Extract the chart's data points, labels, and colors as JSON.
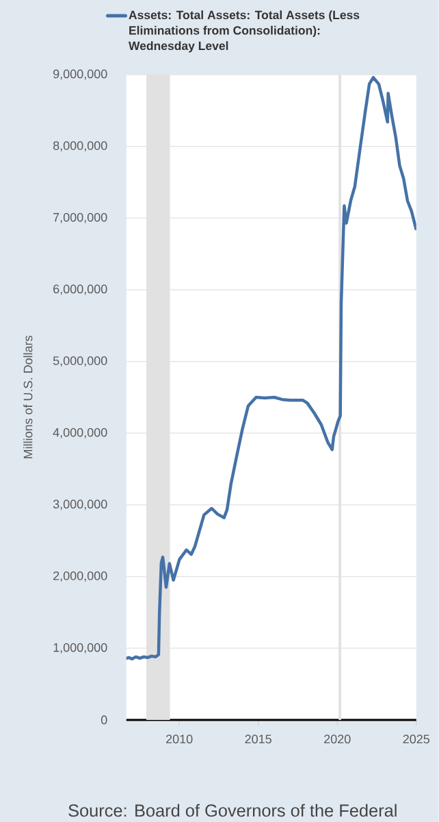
{
  "chart_data": {
    "type": "line",
    "x": [
      "2006-08-30",
      "2006-11-01",
      "2007-01-03",
      "2007-04-04",
      "2007-07-04",
      "2007-10-03",
      "2008-01-02",
      "2008-04-02",
      "2008-07-02",
      "2008-09-10",
      "2008-10-01",
      "2008-11-12",
      "2008-12-17",
      "2009-03-04",
      "2009-05-20",
      "2009-08-19",
      "2010-01-06",
      "2010-06-16",
      "2010-10-06",
      "2010-12-29",
      "2011-07-27",
      "2012-01-18",
      "2012-06-06",
      "2012-10-31",
      "2013-01-09",
      "2013-04-10",
      "2013-08-21",
      "2014-01-01",
      "2014-05-14",
      "2014-11-12",
      "2015-06-03",
      "2016-01-06",
      "2016-07-06",
      "2017-01-04",
      "2017-10-25",
      "2018-02-07",
      "2018-07-18",
      "2018-12-26",
      "2019-05-29",
      "2019-09-04",
      "2019-10-09",
      "2020-01-22",
      "2020-03-11",
      "2020-04-01",
      "2020-06-10",
      "2020-07-29",
      "2020-11-11",
      "2021-02-10",
      "2021-06-16",
      "2021-10-13",
      "2022-01-12",
      "2022-04-13",
      "2022-08-17",
      "2022-11-16",
      "2023-03-08",
      "2023-03-22",
      "2023-06-14",
      "2023-09-13",
      "2023-12-13",
      "2024-03-13",
      "2024-06-12",
      "2024-09-11",
      "2024-12-25"
    ],
    "series": [
      {
        "name": "Assets: Total Assets: Total Assets (Less Eliminations from Consolidation): Wednesday Level",
        "color": "#4572a7",
        "values": [
          860000,
          870000,
          850000,
          880000,
          860000,
          880000,
          870000,
          890000,
          880000,
          910000,
          1500000,
          2190000,
          2270000,
          1850000,
          2180000,
          1950000,
          2240000,
          2370000,
          2310000,
          2420000,
          2860000,
          2950000,
          2870000,
          2820000,
          2930000,
          3290000,
          3680000,
          4060000,
          4380000,
          4500000,
          4490000,
          4500000,
          4470000,
          4460000,
          4460000,
          4420000,
          4280000,
          4120000,
          3870000,
          3770000,
          3950000,
          4170000,
          4240000,
          5810000,
          7170000,
          6930000,
          7250000,
          7440000,
          7990000,
          8500000,
          8870000,
          8960000,
          8870000,
          8650000,
          8340000,
          8740000,
          8430000,
          8130000,
          7730000,
          7550000,
          7240000,
          7100000,
          6850000
        ]
      }
    ],
    "ylabel": "Millions of U.S. Dollars",
    "xlim": [
      "2006-08-27",
      "2025-01-01"
    ],
    "xticks": [
      "2010",
      "2015",
      "2020",
      "2025"
    ],
    "ylim": [
      0,
      9000000
    ],
    "yticks": [
      0,
      {
        "value": 1000000,
        "label": "1,000,000"
      },
      {
        "value": 2000000,
        "label": "2,000,000"
      },
      {
        "value": 3000000,
        "label": "3,000,000"
      },
      {
        "value": 4000000,
        "label": "4,000,000"
      },
      {
        "value": 5000000,
        "label": "5,000,000"
      },
      {
        "value": 6000000,
        "label": "6,000,000"
      },
      {
        "value": 7000000,
        "label": "7,000,000"
      },
      {
        "value": 8000000,
        "label": "8,000,000"
      },
      {
        "value": 9000000,
        "label": "9,000,000"
      }
    ],
    "bands": [
      {
        "axis": "x",
        "from": "2007-12-01",
        "to": "2009-06-01",
        "color": "#e1e1e1"
      },
      {
        "axis": "x",
        "from": "2020-02-01",
        "to": "2020-04-01",
        "color": "#e1e1e1"
      }
    ],
    "grid": "y",
    "legend": "top",
    "annotations": [
      "Source: Board of Governors of the Federal"
    ]
  }
}
